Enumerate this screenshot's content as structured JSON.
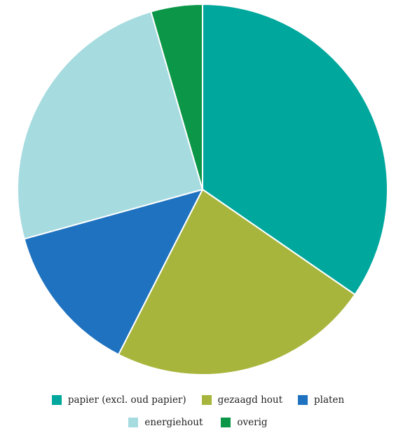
{
  "chart_data": {
    "type": "pie",
    "title": "",
    "slices": [
      {
        "label": "papier (excl. oud papier)",
        "value": 34.6,
        "color": "#00A79D"
      },
      {
        "label": "gezaagd hout",
        "value": 22.9,
        "color": "#A8B53C"
      },
      {
        "label": "platen",
        "value": 13.2,
        "color": "#1F72BF"
      },
      {
        "label": "energiehout",
        "value": 24.8,
        "color": "#A6DBE0"
      },
      {
        "label": "overig",
        "value": 4.5,
        "color": "#0B9648"
      }
    ],
    "start_angle_deg": 0,
    "direction": "clockwise",
    "legend_position": "bottom"
  }
}
